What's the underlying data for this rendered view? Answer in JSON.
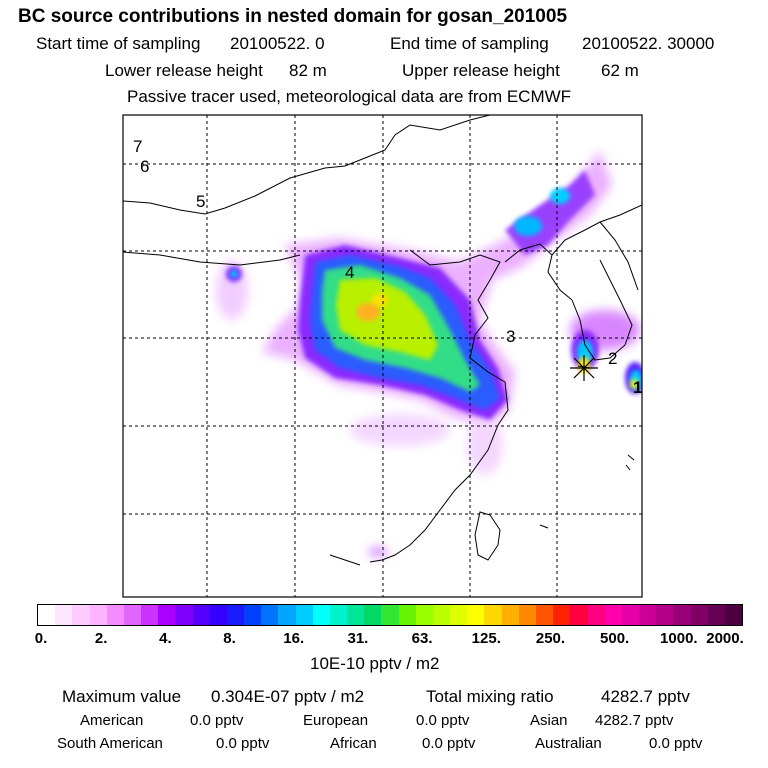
{
  "header": {
    "title": "BC  source contributions in nested domain for gosan_201005",
    "start_label": "Start time of sampling",
    "start_value": "20100522.     0",
    "end_label": "End time of sampling",
    "end_value": "20100522. 30000",
    "lower_label": "Lower release height",
    "lower_value": "82 m",
    "upper_label": "Upper release height",
    "upper_value": "62 m",
    "note": "Passive tracer used, meteorological data are from ECMWF"
  },
  "map": {
    "trajectory_labels": [
      "1",
      "2",
      "3",
      "4",
      "5",
      "6",
      "7"
    ]
  },
  "colorbar": {
    "ticks": [
      "0.",
      "2.",
      "4.",
      "8.",
      "16.",
      "31.",
      "63.",
      "125.",
      "250.",
      "500.",
      "1000.",
      "2000."
    ],
    "unit": "10E-10 pptv / m2",
    "colors": [
      "#ffffff",
      "#ffe6ff",
      "#ffccff",
      "#ffb3ff",
      "#f28cff",
      "#e066ff",
      "#cc33ff",
      "#aa00ff",
      "#8000ff",
      "#5500ff",
      "#3300ff",
      "#1a1aff",
      "#0040ff",
      "#0073ff",
      "#00a6ff",
      "#00ccff",
      "#00ffff",
      "#00f2cc",
      "#00e699",
      "#00d966",
      "#33e633",
      "#66f200",
      "#99ff00",
      "#bbff00",
      "#ddff00",
      "#ffff00",
      "#ffd700",
      "#ffb000",
      "#ff8800",
      "#ff5500",
      "#ff2200",
      "#ff0040",
      "#ff0080",
      "#ff00aa",
      "#e600aa",
      "#cc0099",
      "#b30088",
      "#990077",
      "#800066",
      "#660055",
      "#4d0040"
    ]
  },
  "summary": {
    "max_label": "Maximum value",
    "max_value": "0.304E-07 pptv / m2",
    "total_label": "Total mixing ratio",
    "total_value": "4282.7 pptv",
    "regions": [
      {
        "name": "American",
        "value": "0.0 pptv"
      },
      {
        "name": "European",
        "value": "0.0 pptv"
      },
      {
        "name": "Asian",
        "value": "4282.7 pptv"
      },
      {
        "name": "South American",
        "value": "0.0 pptv"
      },
      {
        "name": "African",
        "value": "0.0 pptv"
      },
      {
        "name": "Australian",
        "value": "0.0 pptv"
      }
    ]
  }
}
